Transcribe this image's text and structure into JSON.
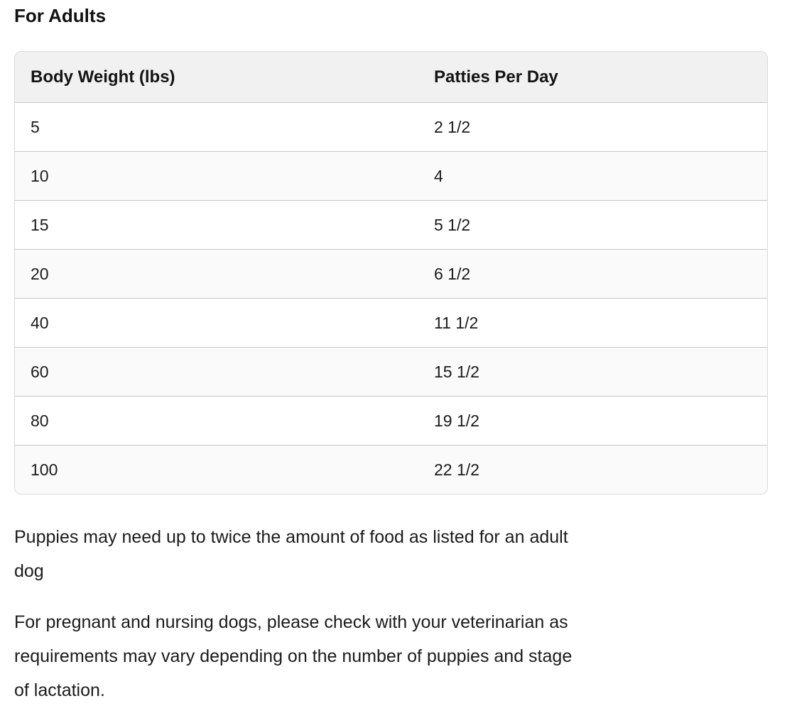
{
  "heading": "For Adults",
  "table": {
    "columns": [
      "Body Weight (lbs)",
      "Patties Per Day"
    ],
    "rows": [
      {
        "weight": "5",
        "patties": "2 1/2"
      },
      {
        "weight": "10",
        "patties": "4"
      },
      {
        "weight": "15",
        "patties": "5 1/2"
      },
      {
        "weight": "20",
        "patties": "6 1/2"
      },
      {
        "weight": "40",
        "patties": "11 1/2"
      },
      {
        "weight": "60",
        "patties": "15 1/2"
      },
      {
        "weight": "80",
        "patties": "19 1/2"
      },
      {
        "weight": "100",
        "patties": "22 1/2"
      }
    ],
    "colors": {
      "header_bg": "#f1f1f1",
      "alt_row_bg": "#fafafa",
      "row_line": "#c7c7c7",
      "outer_border": "#d9d9d9",
      "text": "#1b1b1b"
    }
  },
  "notes": [
    {
      "lines": [
        "Puppies may need up to twice the amount of food as listed for an adult",
        "dog"
      ]
    },
    {
      "lines": [
        "For pregnant and nursing dogs, please check with your veterinarian as",
        "requirements may vary depending on the number of puppies and stage",
        "of lactation."
      ]
    }
  ]
}
